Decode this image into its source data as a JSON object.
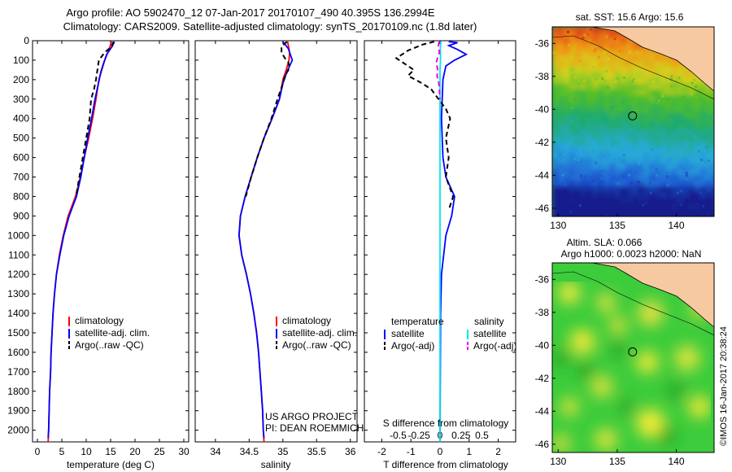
{
  "header": {
    "line1": "Argo profile: AO 5902470_12 07-Jan-2017 20170107_490 40.395S 136.2994E",
    "line2": "Climatology: CARS2009. Satellite-adjusted climatology: synTS_20170109.nc (1.8d later)"
  },
  "chart_data": [
    {
      "type": "line",
      "name": "temperature profile",
      "xlabel": "temperature (deg C)",
      "ylabel": "",
      "xlim": [
        -1,
        31
      ],
      "ylim": [
        0,
        2060
      ],
      "y_inverted": true,
      "xticks": [
        "0",
        "5",
        "10",
        "15",
        "20",
        "25",
        "30"
      ],
      "xtick_values": [
        0,
        5,
        10,
        15,
        20,
        25,
        30
      ],
      "yticks": [
        0,
        100,
        200,
        300,
        400,
        500,
        600,
        700,
        800,
        900,
        1000,
        1100,
        1200,
        1300,
        1400,
        1500,
        1600,
        1700,
        1800,
        1900,
        2000
      ],
      "legend": [
        "climatology",
        "satellite-adj. clim.",
        "Argo(..raw -QC)"
      ],
      "series": [
        {
          "name": "climatology",
          "color": "#ff0000",
          "style": "solid",
          "points": [
            [
              15.2,
              5
            ],
            [
              14.6,
              50
            ],
            [
              13.8,
              100
            ],
            [
              13.2,
              150
            ],
            [
              12.6,
              200
            ],
            [
              12.0,
              300
            ],
            [
              11.3,
              400
            ],
            [
              10.5,
              500
            ],
            [
              9.6,
              600
            ],
            [
              8.8,
              700
            ],
            [
              7.8,
              800
            ],
            [
              6.3,
              900
            ],
            [
              5.3,
              1000
            ],
            [
              4.5,
              1100
            ],
            [
              3.9,
              1200
            ],
            [
              3.5,
              1300
            ],
            [
              3.2,
              1400
            ],
            [
              3.0,
              1500
            ],
            [
              2.8,
              1600
            ],
            [
              2.7,
              1700
            ],
            [
              2.5,
              1800
            ],
            [
              2.4,
              1900
            ],
            [
              2.3,
              2000
            ],
            [
              2.2,
              2060
            ]
          ]
        },
        {
          "name": "satellite-adj. clim.",
          "color": "#0000ff",
          "style": "solid",
          "points": [
            [
              15.8,
              5
            ],
            [
              15.3,
              30
            ],
            [
              14.2,
              70
            ],
            [
              13.5,
              120
            ],
            [
              13.0,
              160
            ],
            [
              12.5,
              220
            ],
            [
              11.8,
              300
            ],
            [
              11.1,
              400
            ],
            [
              10.3,
              500
            ],
            [
              9.6,
              600
            ],
            [
              8.9,
              700
            ],
            [
              8.0,
              800
            ],
            [
              6.5,
              900
            ],
            [
              5.4,
              1000
            ],
            [
              4.6,
              1100
            ],
            [
              3.9,
              1200
            ],
            [
              3.5,
              1300
            ],
            [
              3.2,
              1400
            ],
            [
              3.0,
              1500
            ],
            [
              2.8,
              1600
            ],
            [
              2.7,
              1700
            ],
            [
              2.5,
              1800
            ],
            [
              2.4,
              1900
            ],
            [
              2.3,
              2000
            ],
            [
              2.2,
              2040
            ]
          ]
        },
        {
          "name": "Argo(..raw -QC)",
          "color": "#000000",
          "style": "dashed",
          "points": [
            [
              15.6,
              5
            ],
            [
              15.2,
              30
            ],
            [
              13.8,
              60
            ],
            [
              12.6,
              100
            ],
            [
              12.3,
              150
            ],
            [
              12.0,
              200
            ],
            [
              11.6,
              250
            ],
            [
              11.0,
              300
            ],
            [
              10.7,
              400
            ],
            [
              10.0,
              500
            ],
            [
              9.3,
              600
            ],
            [
              8.6,
              700
            ],
            [
              7.9,
              800
            ]
          ]
        }
      ]
    },
    {
      "type": "line",
      "name": "salinity profile",
      "xlabel": "salinity",
      "ylabel": "",
      "xlim": [
        33.7,
        36.1
      ],
      "ylim": [
        0,
        2060
      ],
      "y_inverted": true,
      "xticks": [
        "34",
        "34.5",
        "35",
        "35.5",
        "36"
      ],
      "xtick_values": [
        34,
        34.5,
        35,
        35.5,
        36
      ],
      "legend": [
        "climatology",
        "satellite-adj. clim.",
        "Argo(..raw -QC)"
      ],
      "series": [
        {
          "name": "climatology",
          "color": "#ff0000",
          "style": "solid",
          "points": [
            [
              35.07,
              5
            ],
            [
              35.1,
              60
            ],
            [
              35.09,
              100
            ],
            [
              35.05,
              150
            ],
            [
              35.0,
              200
            ],
            [
              34.95,
              300
            ],
            [
              34.84,
              400
            ],
            [
              34.72,
              500
            ],
            [
              34.62,
              600
            ],
            [
              34.53,
              700
            ],
            [
              34.44,
              800
            ],
            [
              34.37,
              900
            ],
            [
              34.35,
              1000
            ],
            [
              34.39,
              1100
            ],
            [
              34.46,
              1200
            ],
            [
              34.52,
              1300
            ],
            [
              34.57,
              1400
            ],
            [
              34.61,
              1500
            ],
            [
              34.64,
              1600
            ],
            [
              34.66,
              1700
            ],
            [
              34.68,
              1800
            ],
            [
              34.7,
              1900
            ],
            [
              34.71,
              2000
            ],
            [
              34.72,
              2060
            ]
          ]
        },
        {
          "name": "satellite-adj. clim.",
          "color": "#0000ff",
          "style": "solid",
          "points": [
            [
              35.0,
              5
            ],
            [
              35.08,
              40
            ],
            [
              35.14,
              100
            ],
            [
              35.06,
              160
            ],
            [
              35.0,
              220
            ],
            [
              34.95,
              300
            ],
            [
              34.84,
              400
            ],
            [
              34.72,
              500
            ],
            [
              34.62,
              600
            ],
            [
              34.53,
              700
            ],
            [
              34.44,
              800
            ],
            [
              34.37,
              900
            ],
            [
              34.35,
              1000
            ],
            [
              34.39,
              1100
            ],
            [
              34.46,
              1200
            ],
            [
              34.52,
              1300
            ],
            [
              34.57,
              1400
            ],
            [
              34.61,
              1500
            ],
            [
              34.64,
              1600
            ],
            [
              34.66,
              1700
            ],
            [
              34.68,
              1800
            ],
            [
              34.7,
              1900
            ],
            [
              34.71,
              2000
            ],
            [
              34.72,
              2040
            ]
          ]
        },
        {
          "name": "Argo(..raw -QC)",
          "color": "#000000",
          "style": "dashed",
          "points": [
            [
              35.06,
              5
            ],
            [
              34.98,
              30
            ],
            [
              34.98,
              60
            ],
            [
              35.03,
              90
            ],
            [
              35.08,
              110
            ],
            [
              35.1,
              140
            ],
            [
              35.03,
              180
            ],
            [
              35.0,
              220
            ],
            [
              34.92,
              300
            ],
            [
              34.83,
              400
            ],
            [
              34.72,
              500
            ],
            [
              34.62,
              600
            ],
            [
              34.53,
              700
            ],
            [
              34.45,
              800
            ]
          ]
        }
      ]
    },
    {
      "type": "line",
      "name": "difference from climatology",
      "xlabel": "T difference from climatology",
      "x2label": "S difference from climatology",
      "ylabel": "",
      "xlim": [
        -2.6,
        2.6
      ],
      "ylim": [
        0,
        2060
      ],
      "y_inverted": true,
      "xticks": [
        "-2",
        "-1",
        "0",
        "1",
        "2"
      ],
      "xtick_values": [
        -2,
        -1,
        0,
        1,
        2
      ],
      "x2ticks": [
        "-0.5",
        "-0.25",
        "0",
        "0.25",
        "0.5"
      ],
      "x2tick_values": [
        -0.5,
        -0.25,
        0,
        0.25,
        0.5
      ],
      "legend_temperature_title": "temperature",
      "legend_salinity_title": "salinity",
      "legend_temperature": [
        "satellite",
        "Argo(-adj)"
      ],
      "legend_salinity": [
        "satellite",
        "Argo(-adj)"
      ],
      "series": [
        {
          "name": "temperature satellite",
          "color": "#0000ff",
          "style": "solid",
          "points": [
            [
              0.3,
              5
            ],
            [
              0.6,
              10
            ],
            [
              0.3,
              25
            ],
            [
              0.6,
              45
            ],
            [
              0.9,
              70
            ],
            [
              0.5,
              100
            ],
            [
              0.2,
              130
            ],
            [
              0.1,
              200
            ],
            [
              0.05,
              400
            ],
            [
              0.1,
              600
            ],
            [
              0.2,
              700
            ],
            [
              0.5,
              800
            ],
            [
              0.4,
              900
            ],
            [
              0.2,
              1000
            ],
            [
              0.05,
              1200
            ],
            [
              0.02,
              1400
            ],
            [
              0.0,
              2060
            ]
          ]
        },
        {
          "name": "temperature Argo(-adj)",
          "color": "#000000",
          "style": "dashed",
          "points": [
            [
              -0.2,
              5
            ],
            [
              -0.6,
              20
            ],
            [
              -1.1,
              50
            ],
            [
              -1.3,
              70
            ],
            [
              -1.5,
              90
            ],
            [
              -1.2,
              120
            ],
            [
              -0.9,
              150
            ],
            [
              -1.1,
              180
            ],
            [
              -0.6,
              220
            ],
            [
              -0.3,
              250
            ],
            [
              -0.05,
              300
            ],
            [
              0.2,
              350
            ],
            [
              0.35,
              400
            ],
            [
              0.2,
              500
            ],
            [
              0.3,
              600
            ],
            [
              0.2,
              700
            ],
            [
              0.45,
              800
            ],
            [
              0.3,
              870
            ]
          ]
        },
        {
          "name": "salinity satellite",
          "color": "#00e5ee",
          "style": "solid",
          "points": [
            [
              0.03,
              5
            ],
            [
              0.01,
              40
            ],
            [
              0.02,
              80
            ],
            [
              0.01,
              120
            ],
            [
              0.0,
              150
            ],
            [
              0.0,
              300
            ],
            [
              0.0,
              1300
            ],
            [
              0.0,
              2060
            ]
          ]
        },
        {
          "name": "salinity Argo(-adj)",
          "color": "#ee00ee",
          "style": "dashed",
          "points": [
            [
              -0.03,
              5
            ],
            [
              -0.06,
              30
            ],
            [
              -0.02,
              60
            ],
            [
              -0.09,
              90
            ],
            [
              -0.12,
              110
            ],
            [
              -0.08,
              150
            ],
            [
              -0.1,
              180
            ],
            [
              -0.04,
              220
            ],
            [
              -0.02,
              260
            ],
            [
              0.0,
              300
            ]
          ]
        }
      ]
    },
    {
      "type": "heatmap",
      "name": "SST map",
      "title": "sat. SST: 15.6  Argo: 15.6",
      "xlim": [
        129.5,
        143.2
      ],
      "ylim": [
        -46.5,
        -35.0
      ],
      "xticks": [
        "130",
        "135",
        "140"
      ],
      "xtick_values": [
        130,
        135,
        140
      ],
      "yticks": [
        "-36",
        "-38",
        "-40",
        "-42",
        "-44",
        "-46"
      ],
      "ytick_values": [
        -36,
        -38,
        -40,
        -42,
        -44,
        -46
      ],
      "marker": {
        "lon": 136.3,
        "lat": -40.4
      },
      "colors": {
        "land": "#f7c9a0",
        "warm": "#a01010",
        "cool": "#1030a0"
      }
    },
    {
      "type": "heatmap",
      "name": "SLA map",
      "title": "Altim. SLA: 0.066",
      "subtitle": "Argo h1000: 0.0023  h2000: NaN",
      "xlim": [
        129.5,
        143.2
      ],
      "ylim": [
        -46.5,
        -35.0
      ],
      "xticks": [
        "130",
        "135",
        "140"
      ],
      "xtick_values": [
        130,
        135,
        140
      ],
      "yticks": [
        "-36",
        "-38",
        "-40",
        "-42",
        "-44",
        "-46"
      ],
      "ytick_values": [
        -36,
        -38,
        -40,
        -42,
        -44,
        -46
      ],
      "marker": {
        "lon": 136.3,
        "lat": -40.4
      },
      "colors": {
        "land": "#f7c9a0",
        "base": "#33cc33",
        "high": "#e6e633"
      }
    }
  ],
  "annotations": {
    "project_line1": "US ARGO PROJECT",
    "project_line2": "PI: DEAN ROEMMICH",
    "credit": "©IMOS 16-Jan-2017 20:38:24"
  }
}
